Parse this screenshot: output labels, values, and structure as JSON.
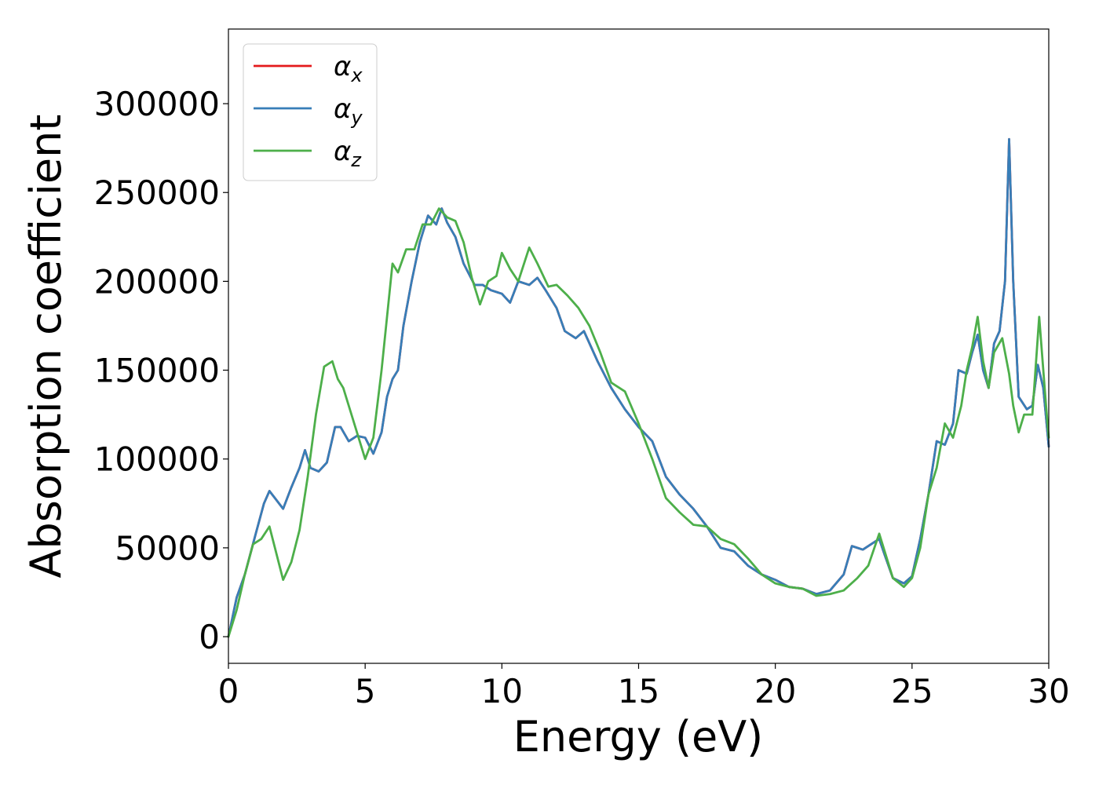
{
  "chart_data": {
    "type": "line",
    "xlabel": "Energy (eV)",
    "ylabel": "Absorption coefficient",
    "xlim": [
      0,
      30
    ],
    "ylim": [
      -15000,
      342000
    ],
    "xticks": [
      0,
      5,
      10,
      15,
      20,
      25,
      30
    ],
    "xtick_labels": [
      "0",
      "5",
      "10",
      "15",
      "20",
      "25",
      "30"
    ],
    "yticks": [
      0,
      50000,
      100000,
      150000,
      200000,
      250000,
      300000
    ],
    "ytick_labels": [
      "0",
      "50000",
      "100000",
      "150000",
      "200000",
      "250000",
      "300000"
    ],
    "grid": false,
    "legend_position": "top-left",
    "series": [
      {
        "name": "αx",
        "label_base": "α",
        "label_sub": "x",
        "color": "#e41a1c",
        "x": [
          0,
          0.3,
          0.6,
          1.0,
          1.3,
          1.5,
          1.7,
          2.0,
          2.3,
          2.6,
          2.8,
          3.0,
          3.3,
          3.6,
          3.9,
          4.1,
          4.4,
          4.7,
          5.0,
          5.3,
          5.6,
          5.8,
          6.0,
          6.2,
          6.4,
          6.7,
          7.0,
          7.3,
          7.6,
          7.8,
          8.0,
          8.3,
          8.6,
          9.0,
          9.3,
          9.6,
          10.0,
          10.3,
          10.6,
          11.0,
          11.3,
          11.6,
          12.0,
          12.3,
          12.7,
          13.0,
          13.5,
          14.0,
          14.5,
          15.0,
          15.5,
          16.0,
          16.5,
          17.0,
          17.5,
          18.0,
          18.5,
          19.0,
          19.5,
          20.0,
          20.5,
          21.0,
          21.5,
          22.0,
          22.5,
          22.8,
          23.0,
          23.2,
          23.5,
          23.8,
          24.0,
          24.3,
          24.7,
          25.0,
          25.3,
          25.6,
          25.9,
          26.2,
          26.5,
          26.7,
          27.0,
          27.2,
          27.4,
          27.6,
          27.8,
          28.0,
          28.2,
          28.4,
          28.55,
          28.7,
          28.9,
          29.2,
          29.4,
          29.6,
          29.8,
          30.0
        ],
        "values": [
          0,
          22000,
          35000,
          58000,
          75000,
          82000,
          78000,
          72000,
          84000,
          95000,
          105000,
          95000,
          93000,
          98000,
          118000,
          118000,
          110000,
          113000,
          112000,
          103000,
          115000,
          135000,
          145000,
          150000,
          175000,
          200000,
          222000,
          237000,
          232000,
          241000,
          233000,
          225000,
          210000,
          198000,
          198000,
          195000,
          193000,
          188000,
          200000,
          198000,
          202000,
          195000,
          185000,
          172000,
          168000,
          172000,
          155000,
          140000,
          128000,
          118000,
          110000,
          90000,
          80000,
          72000,
          62000,
          50000,
          48000,
          40000,
          35000,
          32000,
          28000,
          27000,
          24000,
          26000,
          35000,
          51000,
          50000,
          49000,
          52000,
          55000,
          46000,
          33000,
          30000,
          34000,
          55000,
          80000,
          110000,
          108000,
          120000,
          150000,
          148000,
          160000,
          170000,
          150000,
          140000,
          165000,
          172000,
          200000,
          280000,
          200000,
          135000,
          128000,
          130000,
          153000,
          140000,
          107000
        ]
      },
      {
        "name": "αy",
        "label_base": "α",
        "label_sub": "y",
        "color": "#377eb8",
        "x": [
          0,
          0.3,
          0.6,
          1.0,
          1.3,
          1.5,
          1.7,
          2.0,
          2.3,
          2.6,
          2.8,
          3.0,
          3.3,
          3.6,
          3.9,
          4.1,
          4.4,
          4.7,
          5.0,
          5.3,
          5.6,
          5.8,
          6.0,
          6.2,
          6.4,
          6.7,
          7.0,
          7.3,
          7.6,
          7.8,
          8.0,
          8.3,
          8.6,
          9.0,
          9.3,
          9.6,
          10.0,
          10.3,
          10.6,
          11.0,
          11.3,
          11.6,
          12.0,
          12.3,
          12.7,
          13.0,
          13.5,
          14.0,
          14.5,
          15.0,
          15.5,
          16.0,
          16.5,
          17.0,
          17.5,
          18.0,
          18.5,
          19.0,
          19.5,
          20.0,
          20.5,
          21.0,
          21.5,
          22.0,
          22.5,
          22.8,
          23.0,
          23.2,
          23.5,
          23.8,
          24.0,
          24.3,
          24.7,
          25.0,
          25.3,
          25.6,
          25.9,
          26.2,
          26.5,
          26.7,
          27.0,
          27.2,
          27.4,
          27.6,
          27.8,
          28.0,
          28.2,
          28.4,
          28.55,
          28.7,
          28.9,
          29.2,
          29.4,
          29.6,
          29.8,
          30.0
        ],
        "values": [
          0,
          22000,
          35000,
          58000,
          75000,
          82000,
          78000,
          72000,
          84000,
          95000,
          105000,
          95000,
          93000,
          98000,
          118000,
          118000,
          110000,
          113000,
          112000,
          103000,
          115000,
          135000,
          145000,
          150000,
          175000,
          200000,
          222000,
          237000,
          232000,
          241000,
          233000,
          225000,
          210000,
          198000,
          198000,
          195000,
          193000,
          188000,
          200000,
          198000,
          202000,
          195000,
          185000,
          172000,
          168000,
          172000,
          155000,
          140000,
          128000,
          118000,
          110000,
          90000,
          80000,
          72000,
          62000,
          50000,
          48000,
          40000,
          35000,
          32000,
          28000,
          27000,
          24000,
          26000,
          35000,
          51000,
          50000,
          49000,
          52000,
          55000,
          46000,
          33000,
          30000,
          34000,
          55000,
          80000,
          110000,
          108000,
          120000,
          150000,
          148000,
          160000,
          170000,
          150000,
          140000,
          165000,
          172000,
          200000,
          280000,
          200000,
          135000,
          128000,
          130000,
          153000,
          140000,
          107000
        ]
      },
      {
        "name": "αz",
        "label_base": "α",
        "label_sub": "z",
        "color": "#4daf4a",
        "x": [
          0,
          0.3,
          0.6,
          0.9,
          1.2,
          1.5,
          1.7,
          2.0,
          2.3,
          2.6,
          2.9,
          3.2,
          3.5,
          3.8,
          4.0,
          4.2,
          4.5,
          4.8,
          5.0,
          5.3,
          5.6,
          5.8,
          6.0,
          6.2,
          6.5,
          6.8,
          7.1,
          7.4,
          7.7,
          8.0,
          8.3,
          8.6,
          8.9,
          9.2,
          9.5,
          9.8,
          10.0,
          10.3,
          10.6,
          11.0,
          11.3,
          11.7,
          12.0,
          12.4,
          12.8,
          13.2,
          13.6,
          14.0,
          14.5,
          15.0,
          15.5,
          16.0,
          16.5,
          17.0,
          17.5,
          18.0,
          18.5,
          19.0,
          19.5,
          20.0,
          20.5,
          21.0,
          21.5,
          22.0,
          22.5,
          23.0,
          23.4,
          23.8,
          24.0,
          24.3,
          24.7,
          25.0,
          25.3,
          25.6,
          25.9,
          26.2,
          26.5,
          26.8,
          27.0,
          27.2,
          27.4,
          27.6,
          27.8,
          28.0,
          28.3,
          28.55,
          28.7,
          28.9,
          29.1,
          29.4,
          29.65,
          29.9,
          30.0
        ],
        "values": [
          0,
          15000,
          35000,
          52000,
          55000,
          62000,
          50000,
          32000,
          42000,
          60000,
          90000,
          125000,
          152000,
          155000,
          145000,
          140000,
          125000,
          110000,
          100000,
          112000,
          150000,
          180000,
          210000,
          205000,
          218000,
          218000,
          232000,
          232000,
          241000,
          236000,
          234000,
          222000,
          202000,
          187000,
          200000,
          203000,
          216000,
          207000,
          200000,
          219000,
          210000,
          197000,
          198000,
          192000,
          185000,
          175000,
          160000,
          143000,
          138000,
          120000,
          100000,
          78000,
          70000,
          63000,
          62000,
          55000,
          52000,
          44000,
          35000,
          30000,
          28000,
          27000,
          23000,
          24000,
          26000,
          33000,
          40000,
          58000,
          48000,
          33000,
          28000,
          33000,
          50000,
          80000,
          95000,
          120000,
          112000,
          130000,
          150000,
          163000,
          180000,
          155000,
          140000,
          160000,
          168000,
          148000,
          130000,
          115000,
          125000,
          125000,
          180000,
          130000,
          112000
        ]
      }
    ]
  }
}
